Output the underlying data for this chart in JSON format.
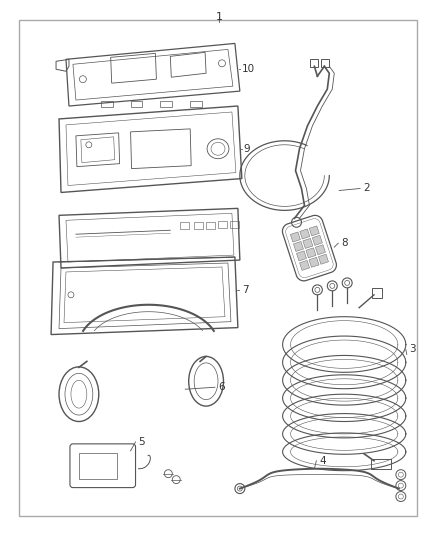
{
  "bg_color": "#ffffff",
  "border_color": "#555555",
  "line_color": "#555555",
  "label_color": "#333333",
  "fig_width": 4.38,
  "fig_height": 5.33,
  "dpi": 100
}
